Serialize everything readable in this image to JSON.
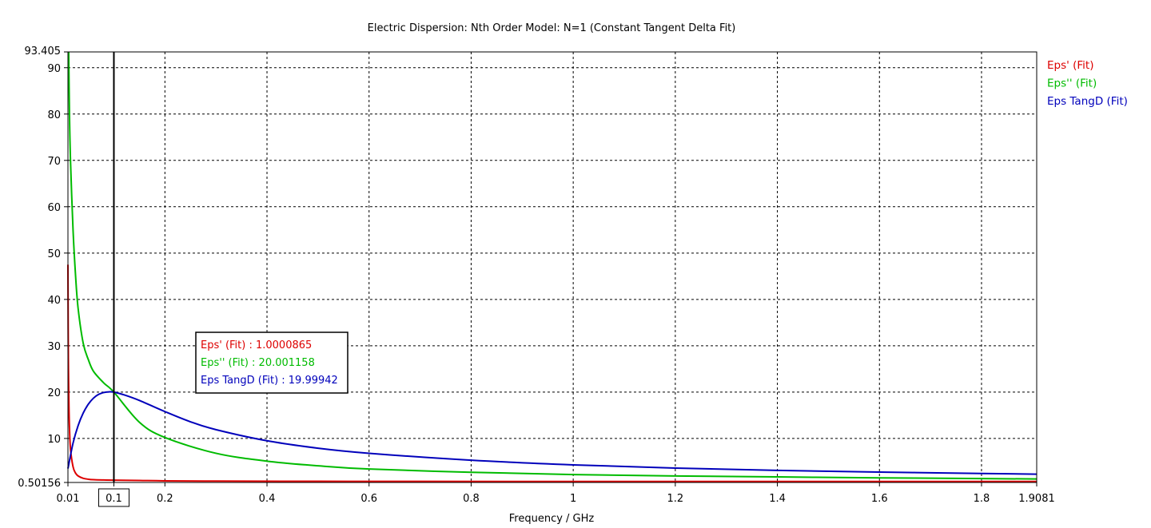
{
  "chart_data": {
    "type": "line",
    "title": "Electric Dispersion: Nth Order Model: N=1 (Constant Tangent Delta Fit)",
    "xlabel": "Frequency / GHz",
    "ylabel": "",
    "xlim": [
      0.01,
      1.9081
    ],
    "ylim": [
      0.50156,
      93.405
    ],
    "x_ticks": [
      "0.01",
      "0.1",
      "0.2",
      "0.4",
      "0.6",
      "0.8",
      "1",
      "1.2",
      "1.4",
      "1.6",
      "1.8",
      "1.9081"
    ],
    "x_tick_values": [
      0.01,
      0.1,
      0.2,
      0.4,
      0.6,
      0.8,
      1,
      1.2,
      1.4,
      1.6,
      1.8,
      1.9081
    ],
    "y_ticks": [
      "93.405",
      "90",
      "80",
      "70",
      "60",
      "50",
      "40",
      "30",
      "20",
      "10",
      "0.50156"
    ],
    "y_tick_values": [
      93.405,
      90,
      80,
      70,
      60,
      50,
      40,
      30,
      20,
      10,
      0.50156
    ],
    "grid": true,
    "grid_style": "dashed",
    "legend_position": "right",
    "series": [
      {
        "name": "Eps' (Fit)",
        "color": "#dd0000",
        "x": [
          0.01,
          0.0105,
          0.011,
          0.012,
          0.013,
          0.015,
          0.02,
          0.025,
          0.03,
          0.04,
          0.05,
          0.06,
          0.08,
          0.1,
          0.15,
          0.2,
          0.3,
          0.5,
          0.7,
          1.0,
          1.5,
          1.9081
        ],
        "y": [
          47.5,
          33.6,
          25.0,
          16.8,
          12.3,
          7.7,
          3.9,
          2.5,
          1.9,
          1.4,
          1.2,
          1.1,
          1.03,
          1.0,
          0.93,
          0.85,
          0.8,
          0.75,
          0.73,
          0.72,
          0.72,
          0.72
        ]
      },
      {
        "name": "Eps'' (Fit)",
        "color": "#00bb00",
        "x": [
          0.0115,
          0.013,
          0.015,
          0.02,
          0.025,
          0.03,
          0.04,
          0.05,
          0.06,
          0.08,
          0.1,
          0.15,
          0.2,
          0.3,
          0.4,
          0.5,
          0.6,
          0.8,
          1.0,
          1.2,
          1.4,
          1.6,
          1.8,
          1.9081
        ],
        "y": [
          93.4,
          80.0,
          70.0,
          55.0,
          45.0,
          38.0,
          30.5,
          27.0,
          24.5,
          22.0,
          20.0,
          13.5,
          10.2,
          6.8,
          5.1,
          4.1,
          3.4,
          2.7,
          2.2,
          1.9,
          1.7,
          1.5,
          1.35,
          1.25
        ]
      },
      {
        "name": "Eps TangD (Fit)",
        "color": "#0000bb",
        "x": [
          0.01,
          0.02,
          0.03,
          0.04,
          0.05,
          0.06,
          0.07,
          0.08,
          0.09,
          0.1,
          0.12,
          0.15,
          0.2,
          0.25,
          0.3,
          0.4,
          0.5,
          0.6,
          0.8,
          1.0,
          1.2,
          1.4,
          1.6,
          1.8,
          1.9081
        ],
        "y": [
          3.5,
          9.0,
          12.8,
          15.5,
          17.4,
          18.7,
          19.5,
          19.9,
          20.05,
          20.0,
          19.4,
          18.2,
          15.8,
          13.6,
          11.9,
          9.5,
          7.9,
          6.8,
          5.3,
          4.3,
          3.6,
          3.1,
          2.75,
          2.45,
          2.3
        ]
      }
    ],
    "cursor": {
      "x": 0.1,
      "x_label": "0.1",
      "readouts": [
        {
          "text": "Eps' (Fit) : 1.0000865",
          "color": "#dd0000"
        },
        {
          "text": "Eps'' (Fit) : 20.001158",
          "color": "#00bb00"
        },
        {
          "text": "Eps TangD (Fit) : 19.99942",
          "color": "#0000bb"
        }
      ]
    }
  }
}
